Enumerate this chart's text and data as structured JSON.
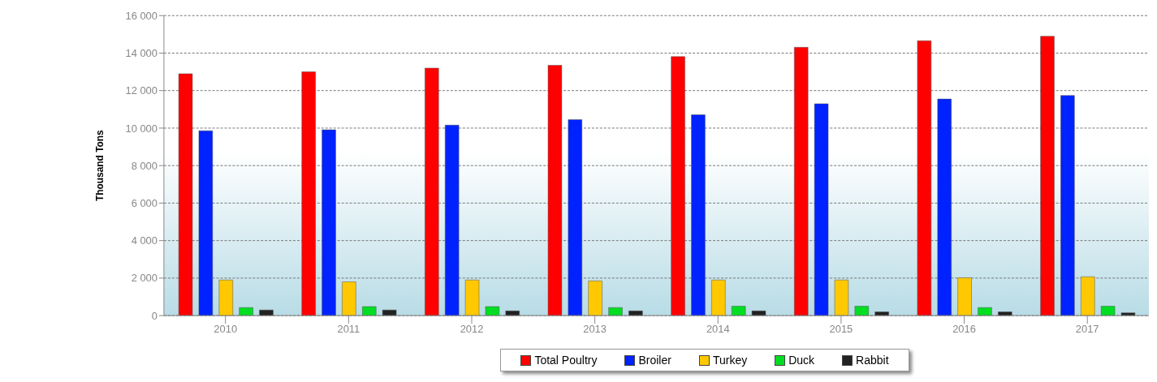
{
  "chart_data": {
    "type": "bar",
    "ylabel": "Thousand Tons",
    "categories": [
      "2010",
      "2011",
      "2012",
      "2013",
      "2014",
      "2015",
      "2016",
      "2017"
    ],
    "series": [
      {
        "name": "Total Poultry",
        "color": "#ff0000",
        "values": [
          12900,
          13000,
          13200,
          13350,
          13810,
          14310,
          14660,
          14900
        ]
      },
      {
        "name": "Broiler",
        "color": "#0022ff",
        "values": [
          9860,
          9910,
          10160,
          10450,
          10710,
          11300,
          11550,
          11740
        ]
      },
      {
        "name": "Turkey",
        "color": "#ffc800",
        "values": [
          1900,
          1800,
          1900,
          1850,
          1900,
          1900,
          2020,
          2070
        ]
      },
      {
        "name": "Duck",
        "color": "#00dd22",
        "values": [
          430,
          480,
          480,
          430,
          500,
          500,
          430,
          500
        ]
      },
      {
        "name": "Rabbit",
        "color": "#222222",
        "values": [
          300,
          300,
          250,
          250,
          250,
          200,
          200,
          150
        ]
      }
    ],
    "ylim": [
      0,
      16000
    ],
    "yticks": [
      0,
      2000,
      4000,
      6000,
      8000,
      10000,
      12000,
      14000,
      16000
    ],
    "grid": "y",
    "legend": "bottom"
  }
}
